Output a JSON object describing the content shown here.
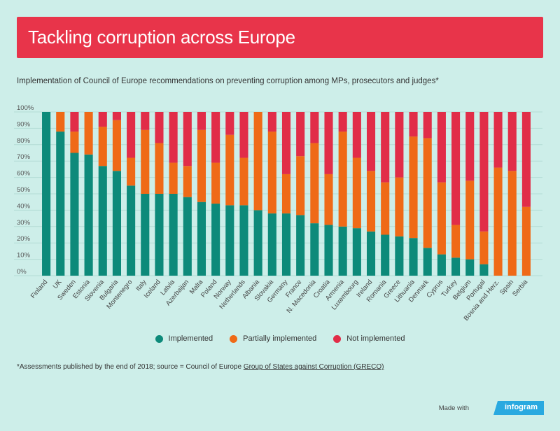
{
  "header": {
    "title": "Tackling corruption across Europe",
    "subtitle": "Implementation of Council of Europe recommendations on preventing corruption among MPs, prosecutors and judges*"
  },
  "colors": {
    "title_bg": "#e8344a",
    "page_bg": "#cdeee9",
    "implemented": "#0d8a7a",
    "partial": "#ef6a17",
    "not_implemented": "#e12d48"
  },
  "chart_data": {
    "type": "bar",
    "stacked": true,
    "categories": [
      "Finland",
      "UK",
      "Sweden",
      "Estonia",
      "Slovenia",
      "Bulgaria",
      "Montenegro",
      "Italy",
      "Iceland",
      "Latvia",
      "Azerbaijan",
      "Malta",
      "Poland",
      "Norway",
      "Netherlands",
      "Albania",
      "Slovakia",
      "Germany",
      "France",
      "N. Macedonia",
      "Croatia",
      "Armenia",
      "Luxembourg",
      "Ireland",
      "Romania",
      "Greece",
      "Lithuania",
      "Denmark",
      "Cyprus",
      "Turkey",
      "Belgium",
      "Portugal",
      "Bosnia and Herz.",
      "Spain",
      "Serbia"
    ],
    "series": [
      {
        "name": "Implemented",
        "values": [
          100,
          88,
          75,
          74,
          67,
          64,
          55,
          50,
          50,
          50,
          48,
          45,
          44,
          43,
          43,
          40,
          38,
          38,
          37,
          32,
          31,
          30,
          29,
          27,
          25,
          24,
          23,
          17,
          13,
          11,
          10,
          7,
          0,
          0,
          0
        ]
      },
      {
        "name": "Partially implemented",
        "values": [
          0,
          12,
          13,
          26,
          24,
          31,
          17,
          39,
          31,
          19,
          19,
          44,
          25,
          43,
          29,
          60,
          50,
          24,
          36,
          49,
          31,
          58,
          43,
          37,
          32,
          36,
          62,
          67,
          44,
          20,
          48,
          20,
          66,
          64,
          42
        ]
      },
      {
        "name": "Not implemented",
        "values": [
          0,
          0,
          12,
          0,
          9,
          5,
          28,
          11,
          19,
          31,
          33,
          11,
          31,
          14,
          28,
          0,
          12,
          38,
          27,
          19,
          38,
          12,
          28,
          36,
          43,
          40,
          15,
          16,
          43,
          69,
          42,
          73,
          34,
          36,
          58
        ]
      }
    ],
    "ylim": [
      0,
      100
    ],
    "yticks": [
      "0%",
      "10%",
      "20%",
      "30%",
      "40%",
      "50%",
      "60%",
      "70%",
      "80%",
      "90%",
      "100%"
    ],
    "grid": true,
    "legend_position": "bottom-center"
  },
  "legend": {
    "items": [
      {
        "label": "Implemented",
        "color": "#0d8a7a"
      },
      {
        "label": "Partially implemented",
        "color": "#ef6a17"
      },
      {
        "label": "Not implemented",
        "color": "#e12d48"
      }
    ]
  },
  "footnote": {
    "text": "*Assessments published by the end of 2018; source = Council of Europe ",
    "link": "Group of States against Corruption (GRECO)"
  },
  "branding": {
    "made_with": "Made with",
    "brand": "infogram"
  }
}
